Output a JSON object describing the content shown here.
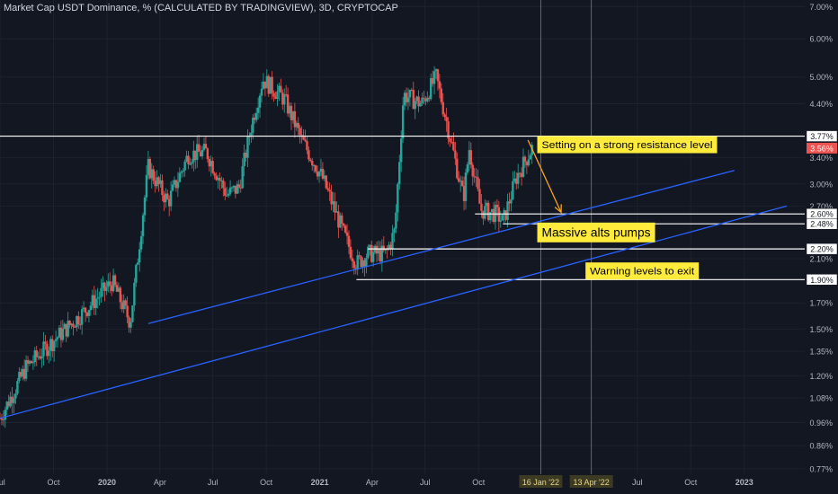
{
  "header": {
    "title": "Market Cap USDT Dominance, % (CALCULATED BY TRADINGVIEW), 3D, CRYPTOCAP"
  },
  "colors": {
    "background": "#131722",
    "up_candle": "#26a69a",
    "down_candle": "#ef5350",
    "trendline": "#2962ff",
    "arrow": "#f7a21b",
    "callout_bg": "#ffeb3b",
    "level_line": "#ffffff",
    "vertical_marker": "#a4a35a"
  },
  "chart_data": {
    "type": "candlestick",
    "title": "Market Cap USDT Dominance, % (CALCULATED BY TRADINGVIEW), 3D, CRYPTOCAP",
    "y_scale": "log",
    "ylim": [
      0.75,
      7.1
    ],
    "y_ticks": [
      "7.00%",
      "6.00%",
      "5.00%",
      "4.40%",
      "3.40%",
      "3.00%",
      "2.70%",
      "2.10%",
      "1.70%",
      "1.50%",
      "1.35%",
      "1.20%",
      "1.08%",
      "0.96%",
      "0.86%",
      "0.77%"
    ],
    "y_tick_values": [
      7.0,
      6.0,
      5.0,
      4.4,
      3.4,
      3.0,
      2.7,
      2.1,
      1.7,
      1.5,
      1.35,
      1.2,
      1.08,
      0.96,
      0.86,
      0.77
    ],
    "x_ticks": [
      "Jul",
      "Oct",
      "2020",
      "Apr",
      "Jul",
      "Oct",
      "2021",
      "Apr",
      "Jul",
      "Oct",
      "16 Jan '22",
      "13 Apr '22",
      "Jul",
      "Oct",
      "2023"
    ],
    "x_tick_dates": [
      "2019-07-01",
      "2019-10-01",
      "2020-01-01",
      "2020-04-01",
      "2020-07-01",
      "2020-10-01",
      "2021-01-01",
      "2021-04-01",
      "2021-07-01",
      "2021-10-01",
      "2022-01-16",
      "2022-04-13",
      "2022-07-01",
      "2022-10-01",
      "2023-01-01"
    ],
    "x_range": [
      "2019-07-01",
      "2023-04-15"
    ],
    "price_path": [
      [
        "2019-07-01",
        0.98
      ],
      [
        "2019-08-15",
        1.25
      ],
      [
        "2019-10-01",
        1.42
      ],
      [
        "2019-11-20",
        1.62
      ],
      [
        "2020-01-10",
        1.88
      ],
      [
        "2020-02-10",
        1.55
      ],
      [
        "2020-03-12",
        3.25
      ],
      [
        "2020-04-15",
        2.75
      ],
      [
        "2020-05-20",
        3.45
      ],
      [
        "2020-06-20",
        3.5
      ],
      [
        "2020-07-25",
        2.85
      ],
      [
        "2020-08-15",
        2.95
      ],
      [
        "2020-09-05",
        3.95
      ],
      [
        "2020-09-25",
        4.95
      ],
      [
        "2020-11-01",
        4.5
      ],
      [
        "2020-12-01",
        3.7
      ],
      [
        "2021-01-05",
        3.1
      ],
      [
        "2021-02-15",
        2.3
      ],
      [
        "2021-03-05",
        2.05
      ],
      [
        "2021-03-25",
        2.15
      ],
      [
        "2021-04-25",
        2.15
      ],
      [
        "2021-05-10",
        2.4
      ],
      [
        "2021-05-25",
        4.6
      ],
      [
        "2021-06-25",
        4.4
      ],
      [
        "2021-07-20",
        5.0
      ],
      [
        "2021-08-10",
        3.9
      ],
      [
        "2021-09-05",
        2.8
      ],
      [
        "2021-09-15",
        3.55
      ],
      [
        "2021-10-05",
        2.65
      ],
      [
        "2021-11-01",
        2.6
      ],
      [
        "2021-11-12",
        2.5
      ],
      [
        "2021-12-05",
        3.1
      ],
      [
        "2022-01-01",
        3.56
      ]
    ],
    "price_labels": [
      {
        "label": "3.77%",
        "value": 3.77,
        "style": "level"
      },
      {
        "label": "3.56%",
        "value": 3.56,
        "style": "current"
      },
      {
        "label": "2.60%",
        "value": 2.6,
        "style": "level"
      },
      {
        "label": "2.48%",
        "value": 2.48,
        "style": "level"
      },
      {
        "label": "2.20%",
        "value": 2.2,
        "style": "level"
      },
      {
        "label": "1.90%",
        "value": 1.9,
        "style": "level"
      }
    ],
    "horizontal_levels": [
      {
        "value": 3.77,
        "from": "2019-07-01"
      },
      {
        "value": 2.6,
        "from": "2021-09-25"
      },
      {
        "value": 2.48,
        "from": "2021-11-12"
      },
      {
        "value": 2.2,
        "from": "2021-03-25"
      },
      {
        "value": 1.9,
        "from": "2021-03-05"
      }
    ],
    "trendlines": [
      {
        "from": [
          "2020-03-12",
          1.54
        ],
        "to": [
          "2022-12-15",
          3.2
        ]
      },
      {
        "from": [
          "2019-07-01",
          0.98
        ],
        "to": [
          "2023-03-15",
          2.7
        ]
      }
    ],
    "arrow": {
      "from": [
        "2021-12-25",
        3.7
      ],
      "to": [
        "2022-02-20",
        2.62
      ]
    },
    "vertical_markers": [
      "2022-01-16",
      "2022-04-13"
    ],
    "annotations": [
      {
        "text": "Setting on a strong resistance level",
        "date": "2022-01-10",
        "value": 3.62,
        "size": "normal"
      },
      {
        "text": "Massive alts pumps",
        "date": "2022-01-10",
        "value": 2.38,
        "size": "large"
      },
      {
        "text": "Warning levels to exit",
        "date": "2022-04-03",
        "value": 1.98,
        "size": "normal"
      }
    ]
  }
}
